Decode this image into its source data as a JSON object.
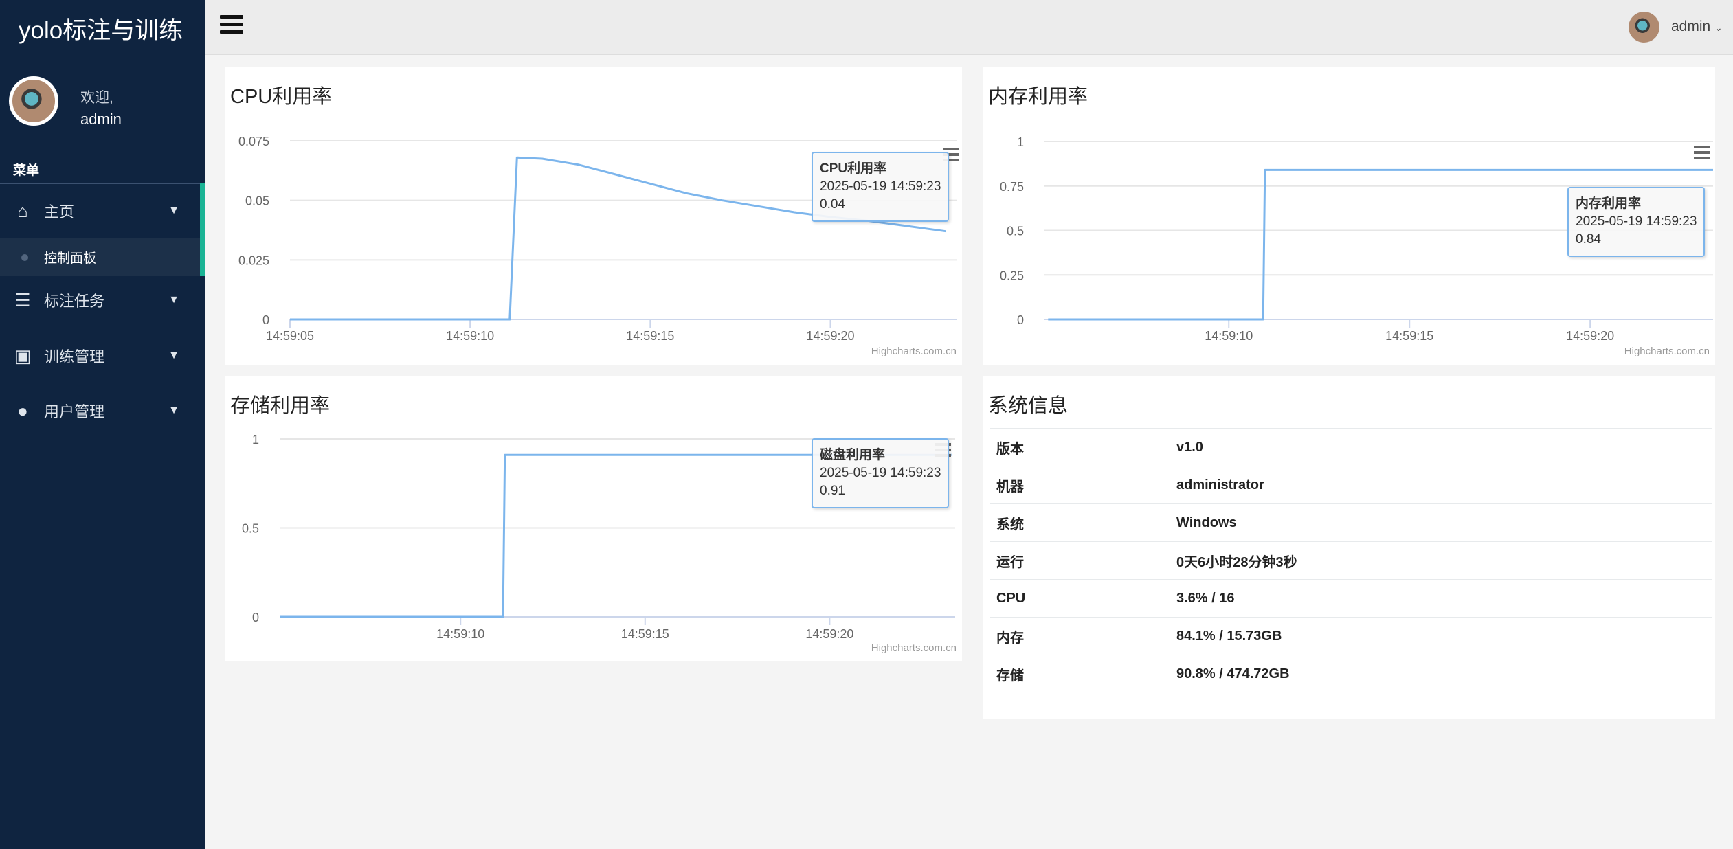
{
  "app": {
    "title": "yolo标注与训练"
  },
  "user": {
    "welcome": "欢迎,",
    "name": "admin"
  },
  "sidebar": {
    "menu_heading": "菜单",
    "items": [
      {
        "label": "主页",
        "icon": "home-icon",
        "expanded": true,
        "children": [
          {
            "label": "控制面板",
            "active": true
          }
        ]
      },
      {
        "label": "标注任务",
        "icon": "database-icon"
      },
      {
        "label": "训练管理",
        "icon": "train-icon"
      },
      {
        "label": "用户管理",
        "icon": "user-icon"
      }
    ]
  },
  "header": {
    "user": "admin"
  },
  "colors": {
    "sidebar": "#0f2440",
    "accent": "#1ab394",
    "series": "#7cb5ec"
  },
  "credit": "Highcharts.com.cn",
  "chart_data": [
    {
      "type": "line",
      "title": "CPU利用率",
      "series": [
        {
          "name": "CPU利用率",
          "x": [
            "14:59:05",
            "14:59:11.1",
            "14:59:11.3",
            "14:59:12",
            "14:59:13",
            "14:59:14",
            "14:59:15",
            "14:59:16",
            "14:59:17",
            "14:59:18",
            "14:59:19",
            "14:59:20",
            "14:59:21",
            "14:59:22",
            "14:59:23.2"
          ],
          "y": [
            0,
            0,
            0.068,
            0.0675,
            0.065,
            0.061,
            0.057,
            0.053,
            0.05,
            0.0475,
            0.045,
            0.043,
            0.0415,
            0.0395,
            0.037
          ]
        }
      ],
      "yticks": [
        "0",
        "0.025",
        "0.05",
        "0.075"
      ],
      "ylim": [
        0,
        0.075
      ],
      "xticks": [
        "14:59:05",
        "14:59:10",
        "14:59:15",
        "14:59:20"
      ],
      "xlim": [
        "14:59:05",
        "14:59:23.5"
      ],
      "grid": true,
      "tooltip": {
        "series": "CPU利用率",
        "time": "2025-05-19 14:59:23",
        "value": "0.04"
      }
    },
    {
      "type": "line",
      "title": "内存利用率",
      "series": [
        {
          "name": "内存利用率",
          "x": [
            "14:59:05",
            "14:59:10.95",
            "14:59:11",
            "14:59:23.4"
          ],
          "y": [
            0,
            0,
            0.84,
            0.84
          ]
        }
      ],
      "yticks": [
        "0",
        "0.25",
        "0.5",
        "0.75",
        "1"
      ],
      "ylim": [
        0,
        1
      ],
      "xticks": [
        "14:59:10",
        "14:59:15",
        "14:59:20"
      ],
      "xlim": [
        "14:59:04.9",
        "14:59:23.4"
      ],
      "grid": true,
      "tooltip": {
        "series": "内存利用率",
        "time": "2025-05-19 14:59:23",
        "value": "0.84"
      }
    },
    {
      "type": "line",
      "title": "存储利用率",
      "series": [
        {
          "name": "磁盘利用率",
          "x": [
            "14:59:05.1",
            "14:59:11.15",
            "14:59:11.2",
            "14:59:23.3"
          ],
          "y": [
            0,
            0,
            0.91,
            0.91
          ]
        }
      ],
      "yticks": [
        "0",
        "0.5",
        "1"
      ],
      "ylim": [
        0,
        1
      ],
      "xticks": [
        "14:59:10",
        "14:59:15",
        "14:59:20"
      ],
      "xlim": [
        "14:59:05.1",
        "14:59:23.4"
      ],
      "grid": true,
      "tooltip": {
        "series": "磁盘利用率",
        "time": "2025-05-19 14:59:23",
        "value": "0.91"
      }
    }
  ],
  "sysinfo": {
    "title": "系统信息",
    "rows": [
      {
        "label": "版本",
        "value": "v1.0"
      },
      {
        "label": "机器",
        "value": "administrator"
      },
      {
        "label": "系统",
        "value": "Windows"
      },
      {
        "label": "运行",
        "value": "0天6小时28分钟3秒"
      },
      {
        "label": "CPU",
        "value": "3.6% / 16"
      },
      {
        "label": "内存",
        "value": "84.1% / 15.73GB"
      },
      {
        "label": "存储",
        "value": "90.8% / 474.72GB"
      }
    ]
  }
}
